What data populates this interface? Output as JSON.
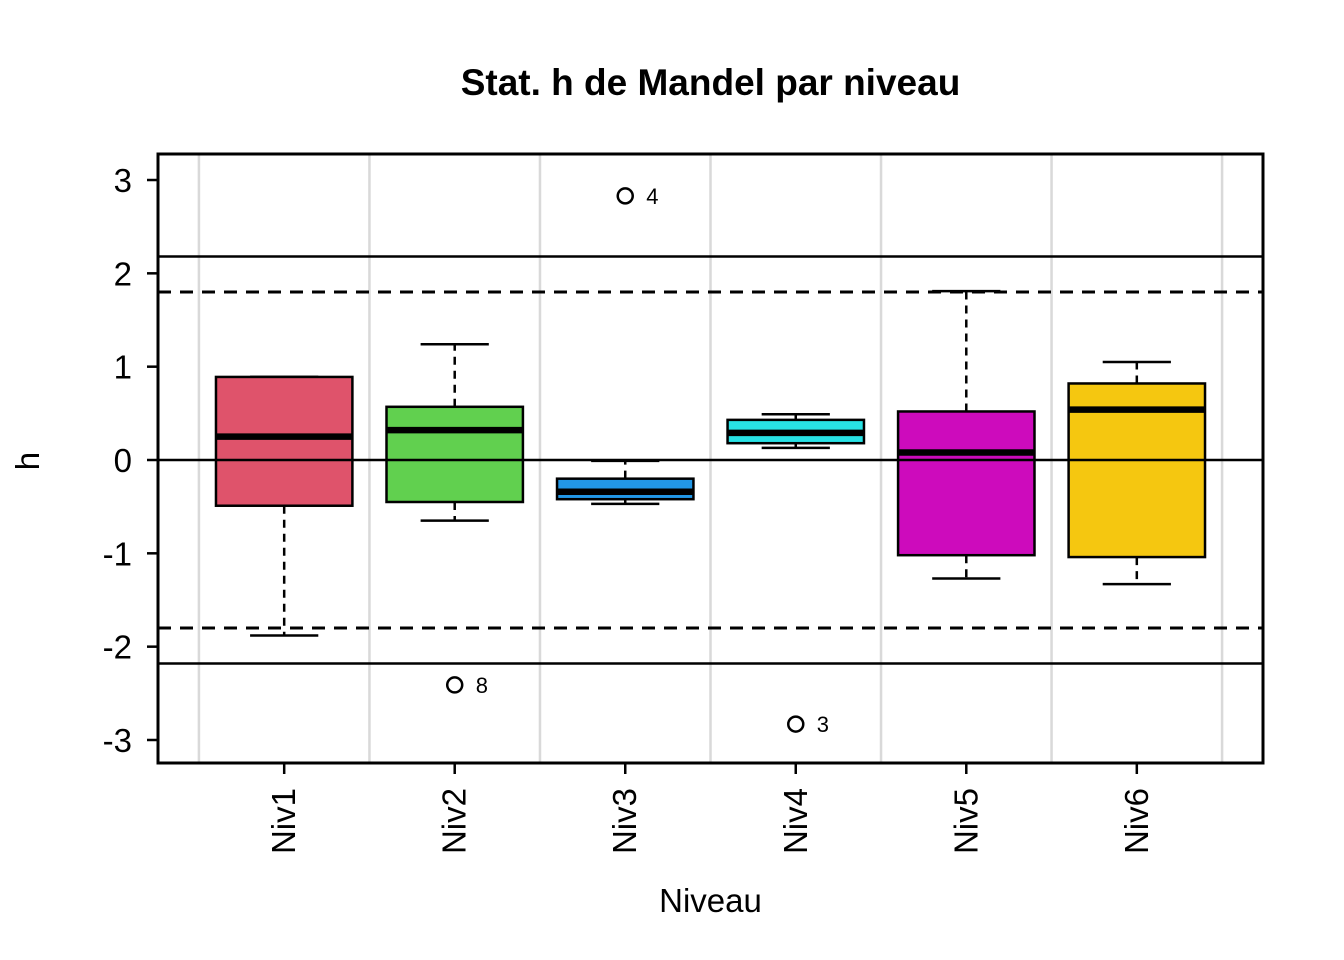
{
  "chart_data": {
    "type": "boxplot",
    "title": "Stat. h de Mandel par niveau",
    "xlabel": "Niveau",
    "ylabel": "h",
    "categories": [
      "Niv1",
      "Niv2",
      "Niv3",
      "Niv4",
      "Niv5",
      "Niv6"
    ],
    "y_ticks": [
      3,
      2,
      1,
      0,
      -1,
      -2,
      -3
    ],
    "ylim": [
      -3.26,
      3.28
    ],
    "grid": {
      "vertical_boundaries": true,
      "color": "#D9D9D9"
    },
    "legend": "none",
    "reference_lines": [
      {
        "value": 2.18,
        "style": "solid"
      },
      {
        "value": 1.8,
        "style": "dashed"
      },
      {
        "value": 0,
        "style": "solid"
      },
      {
        "value": -1.8,
        "style": "dashed"
      },
      {
        "value": -2.18,
        "style": "solid"
      }
    ],
    "series": [
      {
        "name": "Niv1",
        "color": "#DF536B",
        "whisker_low": -1.88,
        "q1": -0.49,
        "median": 0.25,
        "q3": 0.89,
        "whisker_high": 0.89,
        "outliers": []
      },
      {
        "name": "Niv2",
        "color": "#61D04F",
        "whisker_low": -0.65,
        "q1": -0.45,
        "median": 0.32,
        "q3": 0.57,
        "whisker_high": 1.24,
        "outliers": [
          {
            "value": -2.41,
            "label": "8"
          }
        ]
      },
      {
        "name": "Niv3",
        "color": "#2297E6",
        "whisker_low": -0.47,
        "q1": -0.42,
        "median": -0.34,
        "q3": -0.2,
        "whisker_high": -0.01,
        "outliers": [
          {
            "value": 2.83,
            "label": "4"
          }
        ]
      },
      {
        "name": "Niv4",
        "color": "#28E2E5",
        "whisker_low": 0.13,
        "q1": 0.18,
        "median": 0.29,
        "q3": 0.43,
        "whisker_high": 0.49,
        "outliers": [
          {
            "value": -2.83,
            "label": "3"
          }
        ]
      },
      {
        "name": "Niv5",
        "color": "#CD0BBC",
        "whisker_low": -1.27,
        "q1": -1.02,
        "median": 0.08,
        "q3": 0.52,
        "whisker_high": 1.81,
        "outliers": []
      },
      {
        "name": "Niv6",
        "color": "#F5C710",
        "whisker_low": -1.33,
        "q1": -1.04,
        "median": 0.54,
        "q3": 0.82,
        "whisker_high": 1.05,
        "outliers": []
      }
    ]
  }
}
